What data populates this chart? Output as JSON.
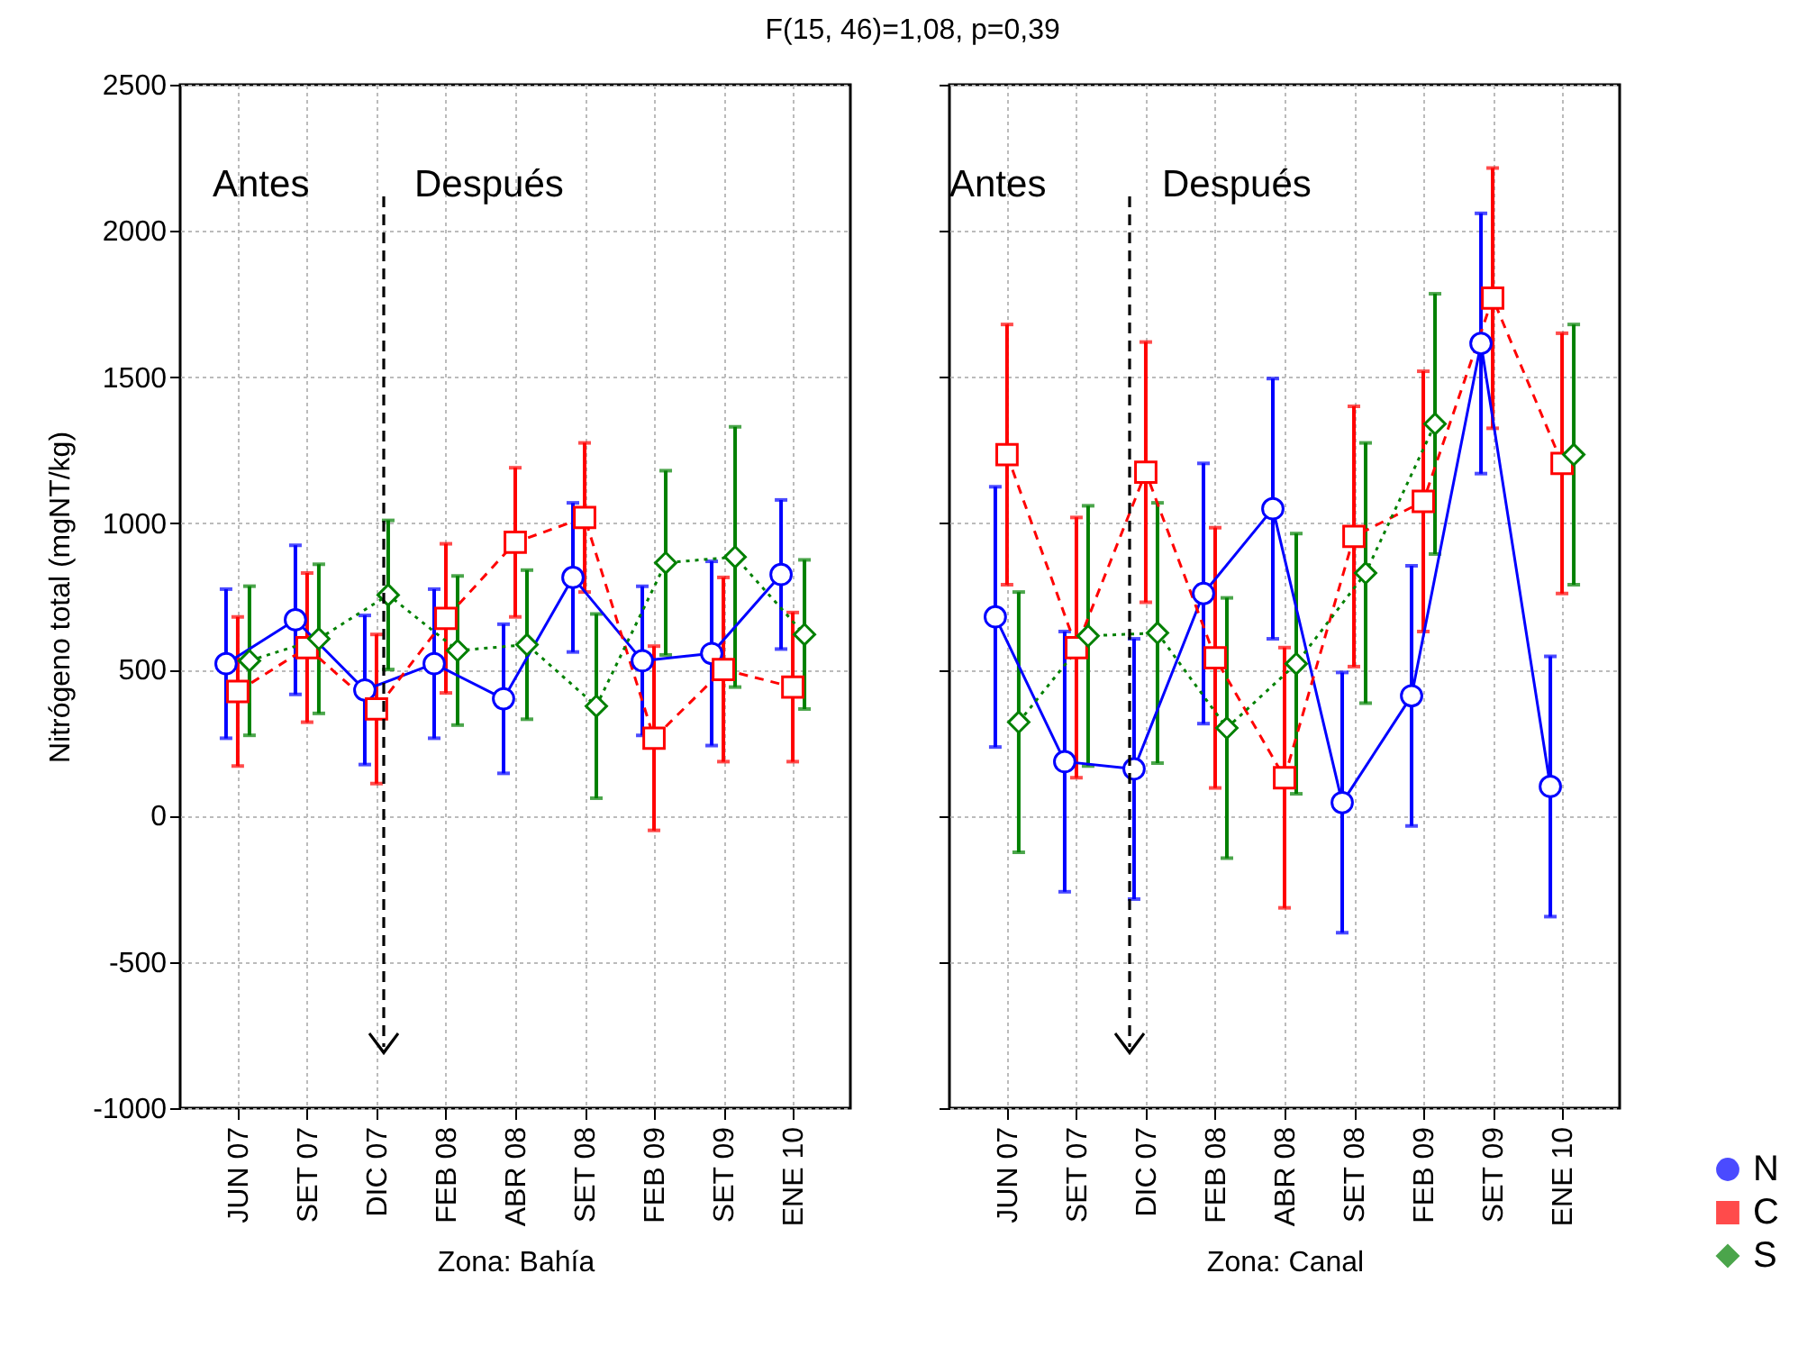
{
  "chart_data": [
    {
      "type": "line",
      "title": "F(15, 46)=1,08, p=0,39",
      "xlabel": "Zona: Bahía",
      "ylabel": "Nitrógeno total (mgNT/kg)",
      "categories": [
        "JUN 07",
        "SET 07",
        "DIC 07",
        "FEB 08",
        "ABR 08",
        "SET 08",
        "FEB 09",
        "SET 09",
        "ENE 10"
      ],
      "ylim": [
        -1000,
        2500
      ],
      "yticks": [
        -1000,
        -500,
        0,
        500,
        1000,
        1500,
        2000,
        2500
      ],
      "grid": true,
      "annotations": [
        "Antes",
        "Después"
      ],
      "series": [
        {
          "color": "#0000ff",
          "marker": "circle",
          "line_style": "solid",
          "values": [
            520,
            670,
            430,
            520,
            400,
            815,
            530,
            555,
            825
          ],
          "errors": [
            255,
            255,
            255,
            255,
            255,
            255,
            255,
            315,
            255
          ]
        },
        {
          "color": "#ff0000",
          "marker": "square",
          "line_style": "dashed",
          "values": [
            425,
            575,
            365,
            675,
            935,
            1020,
            265,
            500,
            440
          ],
          "errors": [
            255,
            255,
            255,
            255,
            255,
            255,
            315,
            315,
            255
          ]
        },
        {
          "color": "#008000",
          "marker": "diamond",
          "line_style": "dotted",
          "values": [
            530,
            605,
            755,
            565,
            585,
            375,
            865,
            885,
            620
          ],
          "errors": [
            255,
            255,
            255,
            255,
            255,
            315,
            315,
            445,
            255
          ]
        }
      ]
    },
    {
      "type": "line",
      "xlabel": "Zona: Canal",
      "categories": [
        "JUN 07",
        "SET 07",
        "DIC 07",
        "FEB 08",
        "ABR 08",
        "SET 08",
        "FEB 09",
        "SET 09",
        "ENE 10"
      ],
      "ylim": [
        -1000,
        2500
      ],
      "yticks": [
        -1000,
        -500,
        0,
        500,
        1000,
        1500,
        2000,
        2500
      ],
      "tick_labels": "x",
      "grid": true,
      "legend": "bottom right",
      "annotations": [
        "Antes",
        "Después"
      ],
      "series": [
        {
          "name": "N",
          "color": "#0000ff",
          "marker": "circle",
          "line_style": "solid",
          "values": [
            680,
            185,
            160,
            760,
            1050,
            45,
            410,
            1615,
            100
          ],
          "errors": [
            445,
            445,
            445,
            445,
            445,
            445,
            445,
            445,
            445
          ]
        },
        {
          "name": "C",
          "color": "#ff0000",
          "marker": "square",
          "line_style": "dashed",
          "values": [
            1235,
            575,
            1175,
            540,
            130,
            955,
            1075,
            1770,
            1205
          ],
          "errors": [
            445,
            445,
            445,
            445,
            445,
            445,
            445,
            445,
            445
          ]
        },
        {
          "name": "S",
          "color": "#008000",
          "marker": "diamond",
          "line_style": "dotted",
          "values": [
            320,
            615,
            625,
            300,
            520,
            830,
            1340,
            null,
            1235
          ],
          "errors": [
            445,
            445,
            445,
            445,
            445,
            445,
            445,
            null,
            445
          ]
        }
      ]
    }
  ]
}
